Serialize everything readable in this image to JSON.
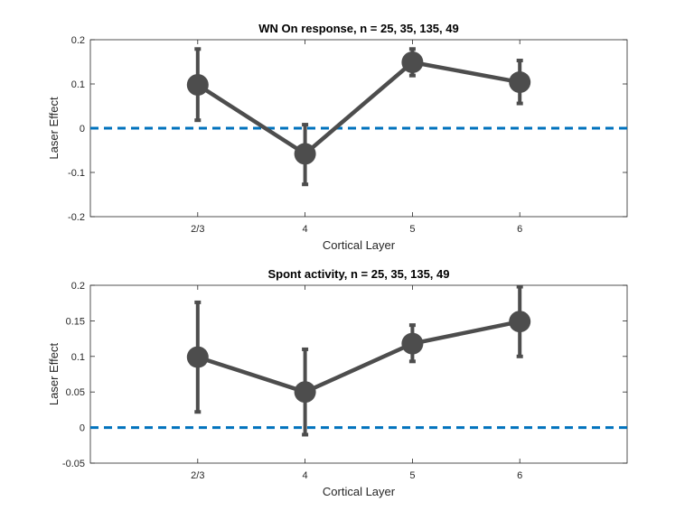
{
  "chart_data": [
    {
      "type": "line",
      "title": "WN On response, n = 25, 35, 135, 49",
      "xlabel": "Cortical Layer",
      "ylabel": "Laser Effect",
      "categories": [
        "2/3",
        "4",
        "5",
        "6"
      ],
      "xlim": [
        0,
        5
      ],
      "ylim": [
        -0.2,
        0.2
      ],
      "yticks": [
        -0.2,
        -0.1,
        0,
        0.1,
        0.2
      ],
      "ytick_labels": [
        "-0.2",
        "-0.1",
        "0",
        "0.1",
        "0.2"
      ],
      "series": [
        {
          "values": [
            0.098,
            -0.058,
            0.149,
            0.104
          ],
          "err_low": [
            0.018,
            -0.127,
            0.119,
            0.056
          ],
          "err_high": [
            0.179,
            0.008,
            0.179,
            0.153
          ],
          "color": "#4d4d4d"
        }
      ],
      "reference_line": {
        "y": 0,
        "style": "dashed",
        "color": "#0072bd"
      },
      "grid": false
    },
    {
      "type": "line",
      "title": "Spont activity, n = 25, 35, 135, 49",
      "xlabel": "Cortical Layer",
      "ylabel": "Laser Effect",
      "categories": [
        "2/3",
        "4",
        "5",
        "6"
      ],
      "xlim": [
        0,
        5
      ],
      "ylim": [
        -0.05,
        0.2
      ],
      "yticks": [
        -0.05,
        0,
        0.05,
        0.1,
        0.15,
        0.2
      ],
      "ytick_labels": [
        "-0.05",
        "0",
        "0.05",
        "0.1",
        "0.15",
        "0.2"
      ],
      "series": [
        {
          "values": [
            0.099,
            0.05,
            0.118,
            0.149
          ],
          "err_low": [
            0.022,
            -0.01,
            0.093,
            0.1
          ],
          "err_high": [
            0.176,
            0.11,
            0.144,
            0.198
          ],
          "color": "#4d4d4d"
        }
      ],
      "reference_line": {
        "y": 0,
        "style": "dashed",
        "color": "#0072bd"
      },
      "grid": false
    }
  ]
}
